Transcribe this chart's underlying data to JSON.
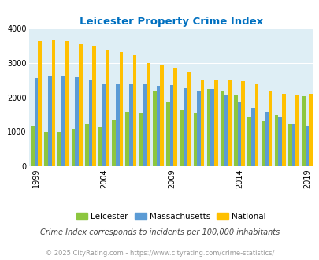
{
  "title": "Leicester Property Crime Index",
  "years": [
    1999,
    2000,
    2001,
    2002,
    2003,
    2004,
    2005,
    2006,
    2007,
    2008,
    2009,
    2010,
    2011,
    2012,
    2013,
    2014,
    2015,
    2016,
    2017,
    2018,
    2019
  ],
  "leicester": [
    1170,
    1010,
    1000,
    1090,
    1230,
    1140,
    1350,
    1580,
    1550,
    2180,
    1880,
    1630,
    1560,
    2240,
    2200,
    2080,
    1450,
    1320,
    1480,
    1250,
    2030
  ],
  "massachusetts": [
    2570,
    2630,
    2610,
    2580,
    2490,
    2380,
    2400,
    2400,
    2400,
    2330,
    2350,
    2280,
    2170,
    2240,
    2090,
    1870,
    1690,
    1580,
    1450,
    1250,
    1180
  ],
  "national": [
    3640,
    3670,
    3640,
    3540,
    3480,
    3380,
    3330,
    3230,
    3010,
    2960,
    2870,
    2760,
    2510,
    2510,
    2500,
    2480,
    2390,
    2170,
    2100,
    2080,
    2100
  ],
  "leicester_color": "#8dc63f",
  "massachusetts_color": "#5b9bd5",
  "national_color": "#ffc000",
  "background_color": "#deeef5",
  "fig_background": "#ffffff",
  "title_color": "#0070c0",
  "subtitle": "Crime Index corresponds to incidents per 100,000 inhabitants",
  "footer": "© 2025 CityRating.com - https://www.cityrating.com/crime-statistics/",
  "tick_years": [
    1999,
    2004,
    2009,
    2014,
    2019
  ],
  "subtitle_color": "#444444",
  "footer_color": "#999999",
  "subtitle_fontsize": 7.0,
  "footer_fontsize": 6.0,
  "title_fontsize": 9.5,
  "legend_fontsize": 7.5,
  "tick_fontsize": 7.0,
  "bar_width": 0.27
}
